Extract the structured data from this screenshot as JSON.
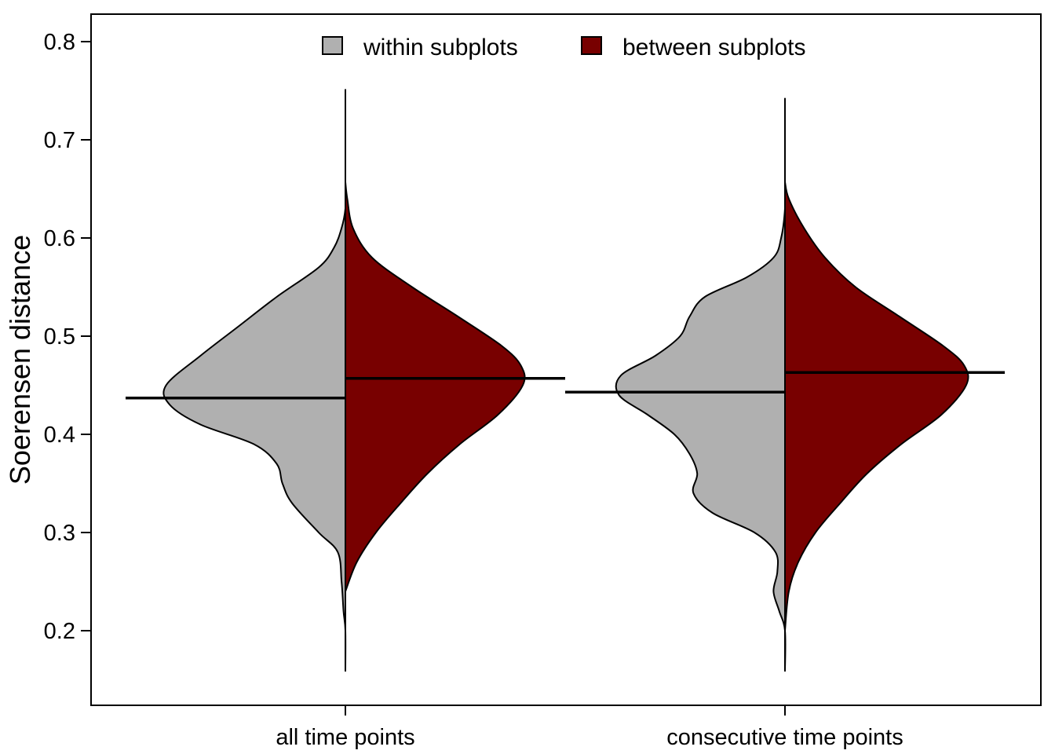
{
  "chart_data": {
    "type": "split-violin",
    "ylabel": "Soerensen distance",
    "xlabel": "",
    "ylim": [
      0.13,
      0.83
    ],
    "yticks": [
      0.2,
      0.3,
      0.4,
      0.5,
      0.6,
      0.7,
      0.8
    ],
    "ytick_labels": [
      "0.2",
      "0.3",
      "0.4",
      "0.5",
      "0.6",
      "0.7",
      "0.8"
    ],
    "categories": [
      "all time points",
      "consecutive time points"
    ],
    "legend": {
      "placement": "top-center",
      "entries": [
        {
          "label": "within subplots",
          "color": "#b0b0b0"
        },
        {
          "label": "between subplots",
          "color": "#780000"
        }
      ]
    },
    "series": [
      {
        "name": "within subplots",
        "side": "left",
        "color": "#b0b0b0",
        "medians": [
          0.437,
          0.443
        ],
        "density": [
          {
            "y": [
              0.159,
              0.2,
              0.22,
              0.25,
              0.28,
              0.3,
              0.33,
              0.35,
              0.37,
              0.39,
              0.41,
              0.43,
              0.45,
              0.48,
              0.51,
              0.54,
              0.57,
              0.59,
              0.61,
              0.63,
              0.65,
              0.69,
              0.751
            ],
            "width": [
              0.0,
              0.0,
              0.01,
              0.02,
              0.04,
              0.14,
              0.28,
              0.33,
              0.36,
              0.48,
              0.76,
              0.92,
              0.94,
              0.76,
              0.56,
              0.36,
              0.14,
              0.06,
              0.02,
              0.0,
              0.0,
              0.0,
              0.0
            ]
          },
          {
            "y": [
              0.159,
              0.2,
              0.22,
              0.24,
              0.26,
              0.28,
              0.3,
              0.32,
              0.34,
              0.36,
              0.38,
              0.4,
              0.42,
              0.44,
              0.46,
              0.48,
              0.5,
              0.52,
              0.54,
              0.56,
              0.58,
              0.6,
              0.63,
              0.66,
              0.742
            ],
            "width": [
              0.0,
              0.0,
              0.03,
              0.06,
              0.04,
              0.05,
              0.16,
              0.38,
              0.48,
              0.46,
              0.5,
              0.58,
              0.72,
              0.87,
              0.86,
              0.68,
              0.55,
              0.5,
              0.42,
              0.2,
              0.06,
              0.02,
              0.0,
              0.0,
              0.0
            ]
          }
        ]
      },
      {
        "name": "between subplots",
        "side": "right",
        "color": "#780000",
        "medians": [
          0.457,
          0.463
        ],
        "density": [
          {
            "y": [
              0.24,
              0.27,
              0.3,
              0.33,
              0.36,
              0.39,
              0.42,
              0.45,
              0.47,
              0.49,
              0.52,
              0.55,
              0.58,
              0.61,
              0.64,
              0.657
            ],
            "width": [
              0.0,
              0.06,
              0.16,
              0.29,
              0.43,
              0.6,
              0.8,
              0.93,
              0.92,
              0.82,
              0.59,
              0.35,
              0.14,
              0.04,
              0.01,
              0.0
            ]
          },
          {
            "y": [
              0.2,
              0.24,
              0.27,
              0.3,
              0.33,
              0.36,
              0.39,
              0.42,
              0.45,
              0.47,
              0.49,
              0.52,
              0.55,
              0.58,
              0.61,
              0.64,
              0.657
            ],
            "width": [
              0.0,
              0.02,
              0.07,
              0.16,
              0.29,
              0.43,
              0.61,
              0.82,
              0.95,
              0.94,
              0.83,
              0.6,
              0.37,
              0.21,
              0.1,
              0.02,
              0.0
            ]
          }
        ]
      }
    ]
  }
}
